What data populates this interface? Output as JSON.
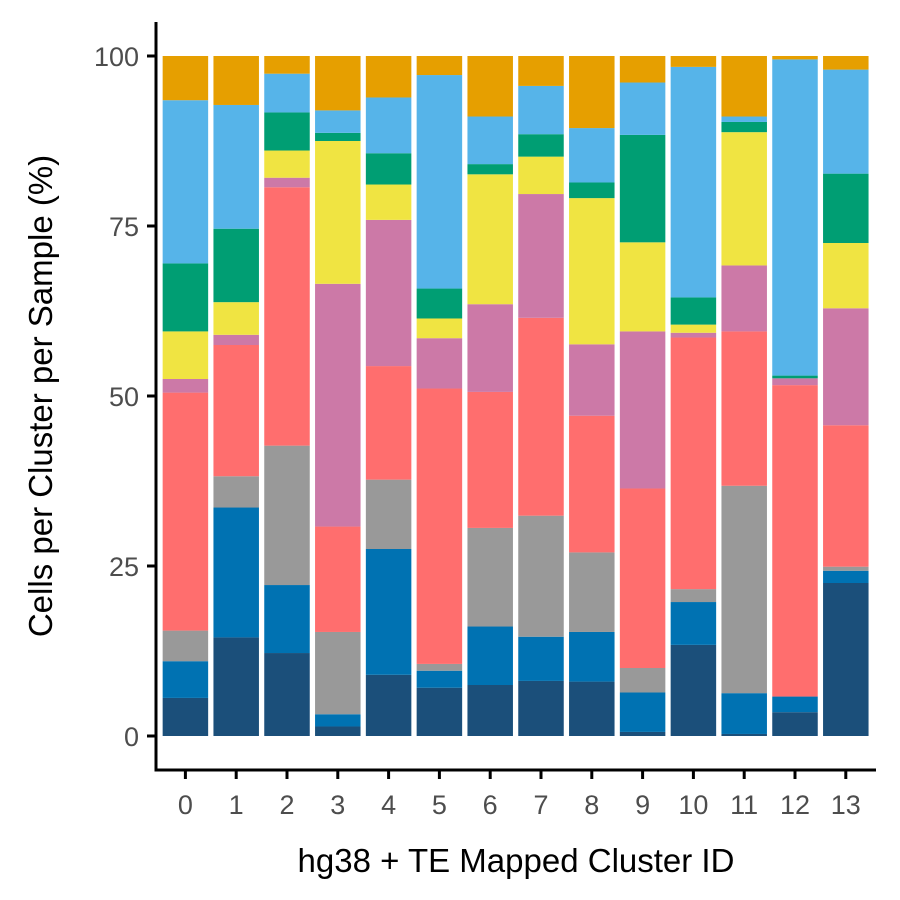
{
  "chart_data": {
    "type": "bar",
    "stacked": true,
    "title": "",
    "xlabel": "hg38 + TE Mapped Cluster ID",
    "ylabel": "Cells per Cluster per Sample (%)",
    "ylim": [
      0,
      100
    ],
    "yticks": [
      "0",
      "25",
      "50",
      "75",
      "100"
    ],
    "categories": [
      "0",
      "1",
      "2",
      "3",
      "4",
      "5",
      "6",
      "7",
      "8",
      "9",
      "10",
      "11",
      "12",
      "13"
    ],
    "grid": false,
    "legend": "none",
    "series": [
      {
        "color": "#1B4F7A",
        "values": [
          5.6,
          14.5,
          12.2,
          1.4,
          9.0,
          7.1,
          7.5,
          8.1,
          8.0,
          0.6,
          13.4,
          0.3,
          3.5,
          22.5
        ]
      },
      {
        "color": "#0072B2",
        "values": [
          5.4,
          19.1,
          10.0,
          1.8,
          18.5,
          2.5,
          8.6,
          6.5,
          7.3,
          5.8,
          6.3,
          6.0,
          2.3,
          1.8
        ]
      },
      {
        "color": "#999999",
        "values": [
          4.5,
          4.6,
          20.5,
          12.1,
          10.2,
          1.0,
          14.5,
          17.8,
          11.7,
          3.6,
          1.9,
          30.5,
          0.0,
          0.6
        ]
      },
      {
        "color": "#FF6E6E",
        "values": [
          35.0,
          19.3,
          38.0,
          15.5,
          16.7,
          40.5,
          20.0,
          29.1,
          20.1,
          26.4,
          37.0,
          22.7,
          45.8,
          20.8
        ]
      },
      {
        "color": "#CC79A7",
        "values": [
          2.0,
          1.5,
          1.4,
          35.7,
          21.5,
          7.4,
          12.9,
          18.2,
          10.5,
          23.1,
          0.7,
          9.7,
          1.0,
          17.2
        ]
      },
      {
        "color": "#F0E442",
        "values": [
          7.0,
          4.8,
          4.0,
          21.0,
          5.2,
          2.9,
          19.1,
          5.5,
          21.5,
          13.1,
          1.2,
          19.6,
          0.0,
          9.6
        ]
      },
      {
        "color": "#009E73",
        "values": [
          10.0,
          10.8,
          5.6,
          1.2,
          4.6,
          4.4,
          1.5,
          3.3,
          2.3,
          15.8,
          4.0,
          1.5,
          0.4,
          10.2
        ]
      },
      {
        "color": "#56B4E9",
        "values": [
          24.0,
          18.2,
          5.7,
          3.3,
          8.2,
          31.4,
          7.0,
          7.1,
          8.0,
          7.7,
          33.9,
          0.8,
          46.5,
          15.3
        ]
      },
      {
        "color": "#E69F00",
        "values": [
          6.5,
          7.2,
          2.6,
          8.0,
          6.1,
          2.8,
          8.9,
          4.4,
          10.6,
          3.9,
          1.6,
          8.9,
          0.5,
          2.0
        ]
      }
    ]
  }
}
